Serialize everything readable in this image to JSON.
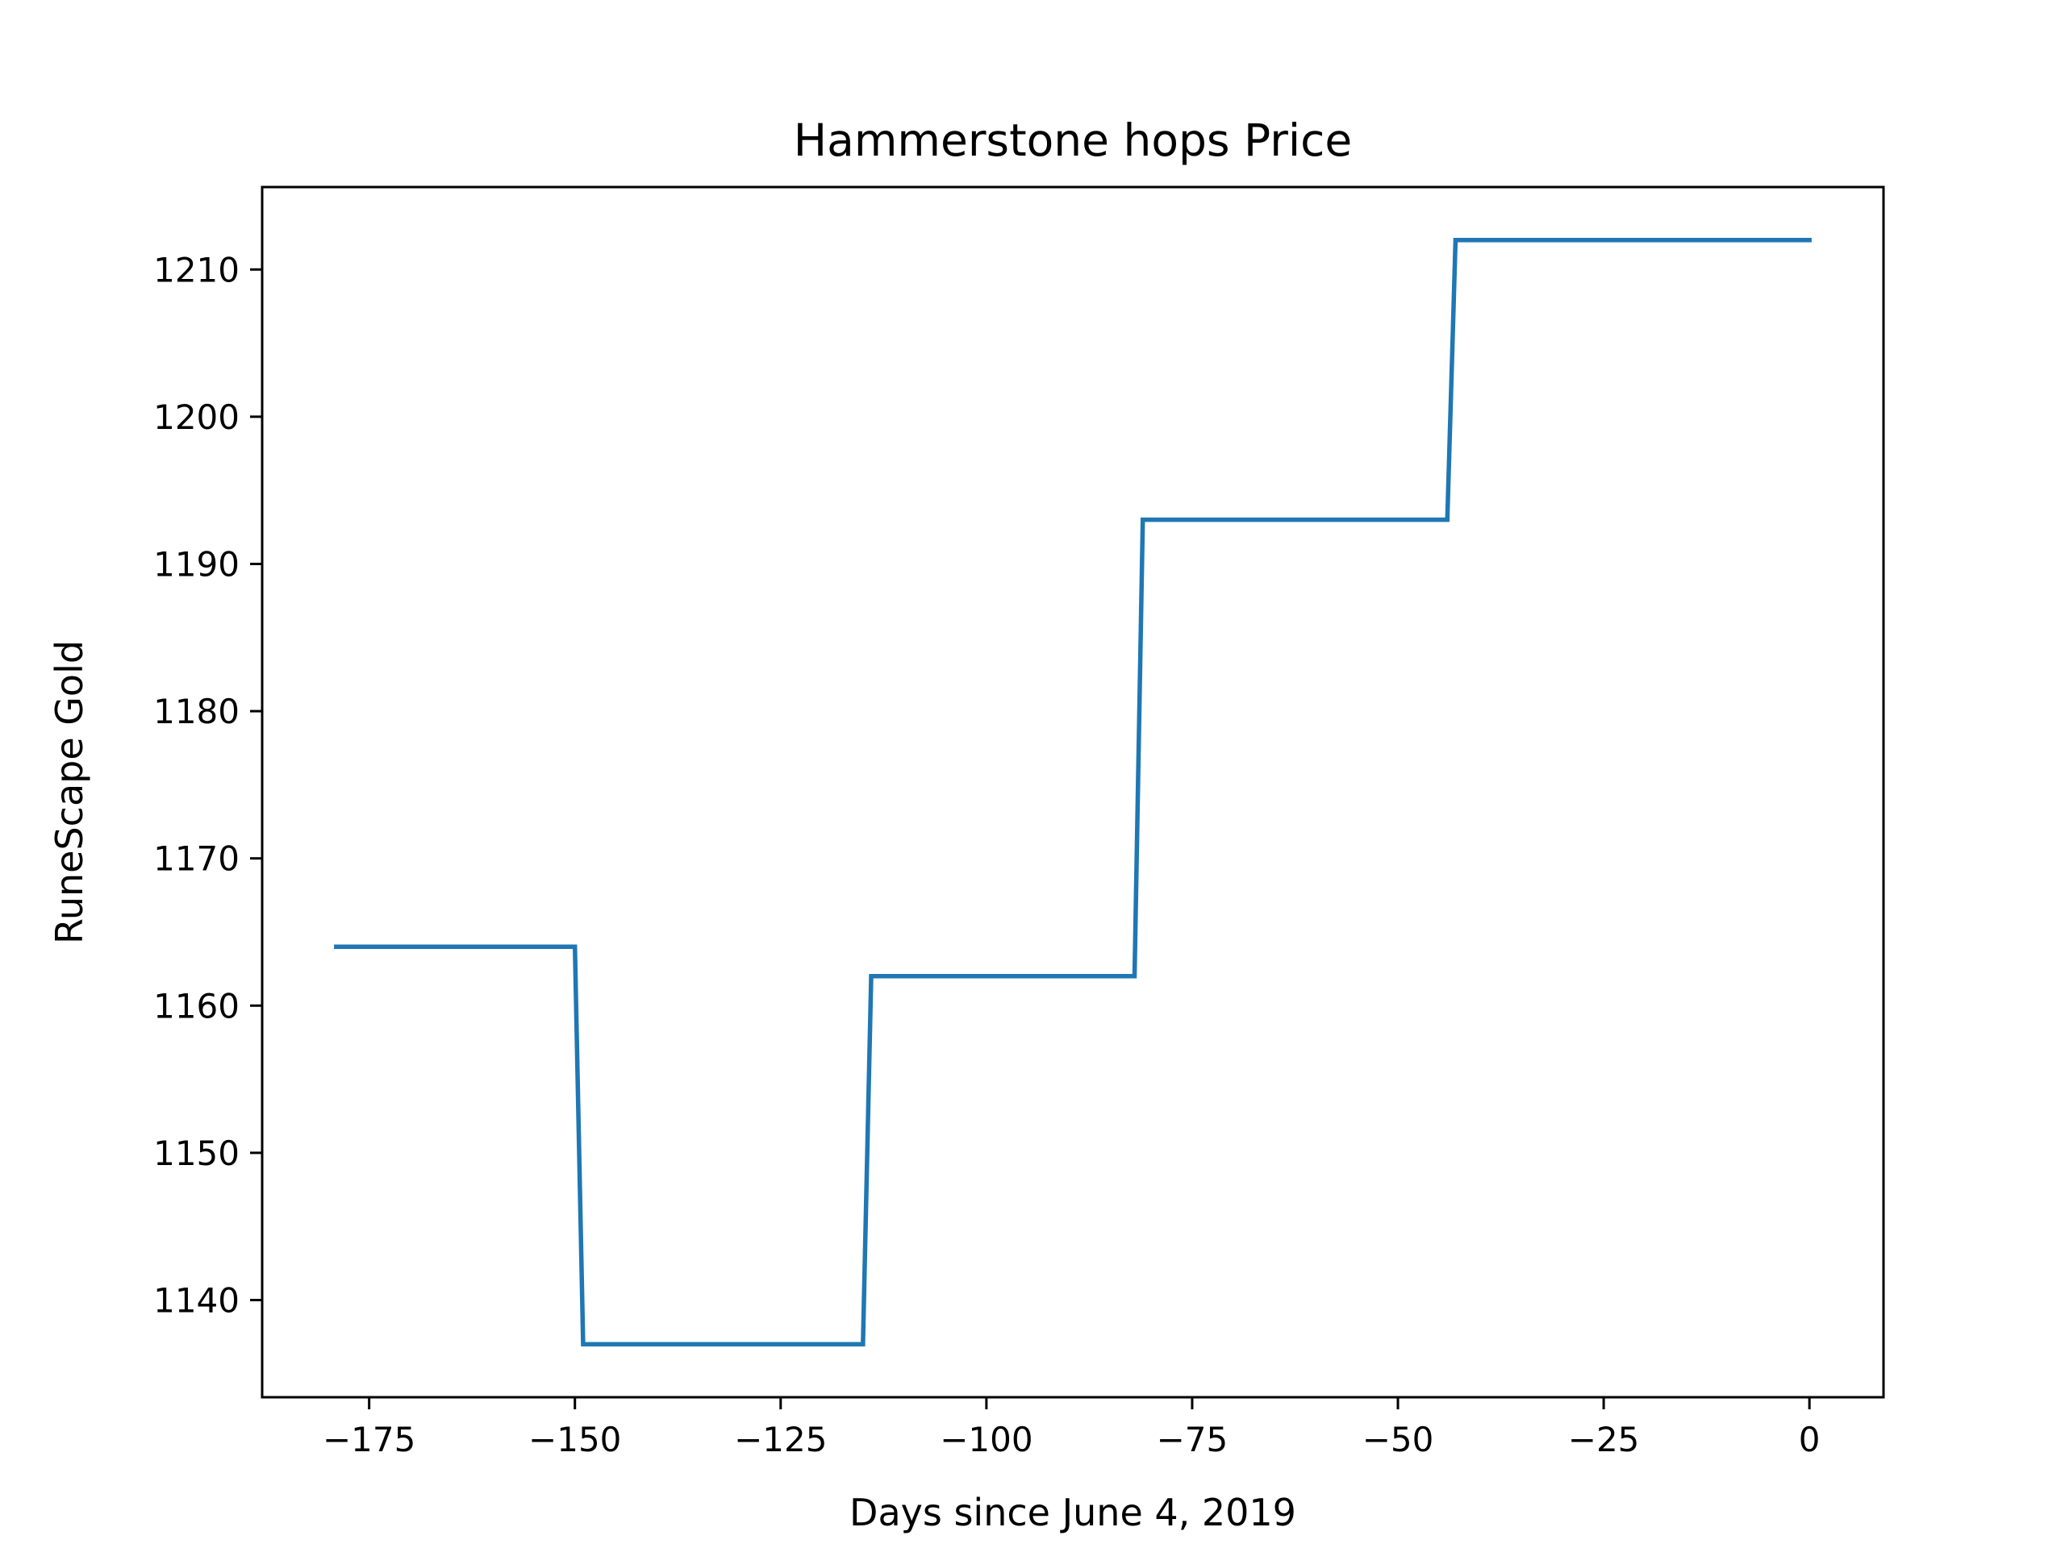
{
  "chart_data": {
    "type": "line",
    "title": "Hammerstone hops Price",
    "xlabel": "Days since June 4, 2019",
    "ylabel": "RuneScape Gold",
    "xlim": [
      -188,
      9
    ],
    "ylim": [
      1133.4,
      1215.6
    ],
    "xticks": [
      -175,
      -150,
      -125,
      -100,
      -75,
      -50,
      -25,
      0
    ],
    "xtick_labels": [
      "−175",
      "−150",
      "−125",
      "−100",
      "−75",
      "−50",
      "−25",
      "0"
    ],
    "yticks": [
      1140,
      1150,
      1160,
      1170,
      1180,
      1190,
      1200,
      1210
    ],
    "ytick_labels": [
      "1140",
      "1150",
      "1160",
      "1170",
      "1180",
      "1190",
      "1200",
      "1210"
    ],
    "grid": false,
    "series": [
      {
        "color": "#1f77b4",
        "x": [
          -179,
          -150,
          -149,
          -115,
          -114,
          -82,
          -81,
          -44,
          -43,
          0
        ],
        "y": [
          1164,
          1164,
          1137,
          1137,
          1162,
          1162,
          1193,
          1193,
          1212,
          1212
        ]
      }
    ]
  }
}
